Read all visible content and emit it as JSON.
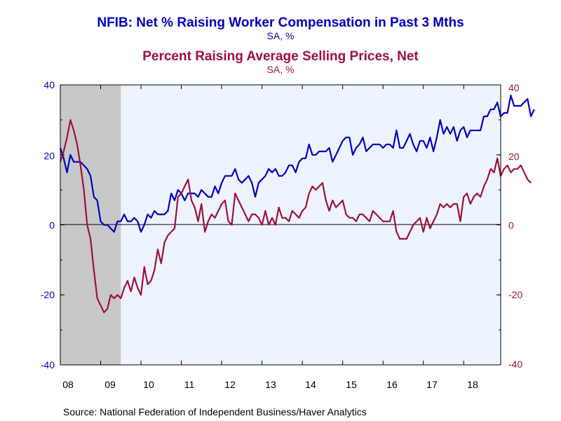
{
  "chart_data": {
    "type": "line",
    "title": "NFIB: Net % Raising Worker Compensation in Past 3 Mths",
    "title_units": "SA, %",
    "subtitle": "Percent Raising Average Selling Prices, Net",
    "subtitle_units": "SA, %",
    "source": "Source:  National Federation of Independent Business/Haver Analytics",
    "x_tick_labels": [
      "08",
      "09",
      "10",
      "11",
      "12",
      "13",
      "14",
      "15",
      "16",
      "17",
      "18"
    ],
    "left_tick_labels": [
      "40",
      "20",
      "0",
      "-20",
      "-40"
    ],
    "right_tick_labels": [
      "40",
      "20",
      "0",
      "-20",
      "-40"
    ],
    "ylim": [
      -40,
      40
    ],
    "xlim": [
      2008.0,
      2018.917
    ],
    "recession_shading": [
      2008.0,
      2009.5
    ],
    "grid": false,
    "colors": {
      "compensation": "#0000c0",
      "prices": "#a0103a",
      "plot_background": "#eef4ff",
      "recession": "#c8c8c8"
    },
    "series": [
      {
        "axis": "left",
        "color": "#0000c0",
        "x_start": 2008.0,
        "x_step": 0.0833333,
        "values": [
          22,
          19,
          15,
          20,
          18,
          18,
          18,
          17,
          16,
          14,
          8,
          7,
          1,
          0,
          0,
          -1,
          -2,
          1,
          1,
          3,
          1,
          1,
          2,
          1,
          -2,
          0,
          3,
          2,
          4,
          3,
          3,
          3,
          4,
          9,
          7,
          10,
          9,
          7,
          9,
          9,
          9,
          8,
          10,
          9,
          8,
          8,
          11,
          9,
          12,
          14,
          14,
          14,
          16,
          13,
          12,
          13,
          14,
          12,
          8,
          12,
          13,
          14,
          16,
          15,
          16,
          14,
          14,
          15,
          17,
          17,
          15,
          18,
          19,
          19,
          23,
          20,
          20,
          21,
          21,
          21,
          22,
          18,
          20,
          22,
          24,
          25,
          25,
          20,
          22,
          23,
          25,
          21,
          22,
          23,
          23,
          23,
          22,
          23,
          23,
          22,
          27,
          22,
          22,
          24,
          26,
          23,
          21,
          24,
          24,
          22,
          25,
          21,
          25,
          30,
          26,
          28,
          26,
          28,
          24,
          27,
          28,
          25,
          27,
          27,
          27,
          27,
          31,
          31,
          33,
          33,
          35,
          31,
          32,
          32,
          37,
          34,
          34,
          34,
          35,
          36,
          31,
          33
        ]
      },
      {
        "axis": "right",
        "color": "#a0103a",
        "x_start": 2008.0,
        "x_step": 0.0833333,
        "values": [
          18,
          21,
          25,
          30,
          27,
          23,
          17,
          10,
          0,
          -4,
          -13,
          -21,
          -23,
          -25,
          -24,
          -20,
          -21,
          -20,
          -21,
          -18,
          -16,
          -19,
          -15,
          -18,
          -20,
          -12,
          -17,
          -16,
          -13,
          -7,
          -11,
          -5,
          -3,
          -2,
          -1,
          8,
          9,
          11,
          13,
          7,
          5,
          1,
          6,
          -2,
          1,
          3,
          2,
          4,
          6,
          7,
          1,
          0,
          9,
          7,
          5,
          3,
          1,
          3,
          3,
          2,
          0,
          4,
          0,
          2,
          0,
          5,
          2,
          2,
          1,
          4,
          3,
          2,
          4,
          5,
          9,
          11,
          10,
          11,
          12,
          7,
          4,
          7,
          5,
          6,
          7,
          3,
          2,
          2,
          1,
          3,
          3,
          2,
          1,
          4,
          3,
          2,
          1,
          1,
          1,
          4,
          -2,
          -4,
          -4,
          -4,
          -2,
          0,
          1,
          2,
          -2,
          2,
          -1,
          1,
          3,
          6,
          5,
          6,
          5,
          6,
          6,
          1,
          8,
          9,
          6,
          8,
          9,
          8,
          11,
          13,
          16,
          15,
          19,
          14,
          16,
          17,
          15,
          16,
          16,
          17,
          15,
          13,
          12
        ]
      }
    ]
  }
}
